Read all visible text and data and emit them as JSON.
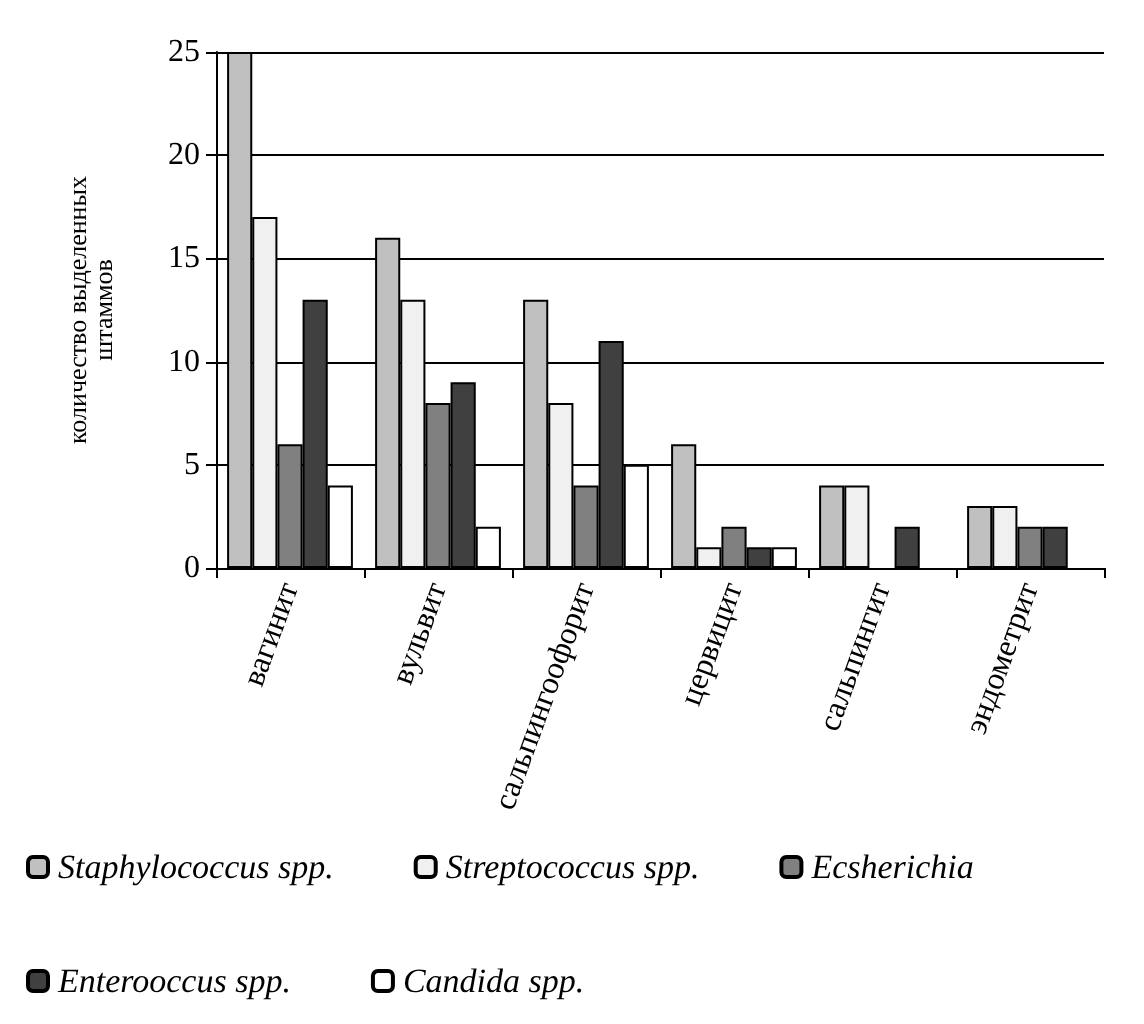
{
  "chart_data": {
    "type": "bar",
    "ylabel": "количество выделенных\nштаммов",
    "categories": [
      "вагинит",
      "вульвит",
      "сальпингоофорит",
      "цервицит",
      "сальпингит",
      "эндометрит"
    ],
    "series": [
      {
        "name": "Staphylococcus spp.",
        "color": "#c0c0c0",
        "values": [
          25,
          16,
          13,
          6,
          4,
          3
        ]
      },
      {
        "name": "Streptococcus spp.",
        "color": "#f0f0f0",
        "values": [
          17,
          13,
          8,
          1,
          4,
          3
        ]
      },
      {
        "name": "Ecsherichia",
        "color": "#808080",
        "values": [
          6,
          8,
          4,
          2,
          0,
          2
        ]
      },
      {
        "name": "Enterooccus spp.",
        "color": "#404040",
        "values": [
          13,
          9,
          11,
          1,
          2,
          2
        ]
      },
      {
        "name": "Candida spp.",
        "color": "#ffffff",
        "values": [
          4,
          2,
          5,
          1,
          0,
          0
        ]
      }
    ],
    "ylim": [
      0,
      25
    ],
    "yticks": [
      0,
      5,
      10,
      15,
      20,
      25
    ],
    "grid": "y",
    "legend": "bottom"
  }
}
